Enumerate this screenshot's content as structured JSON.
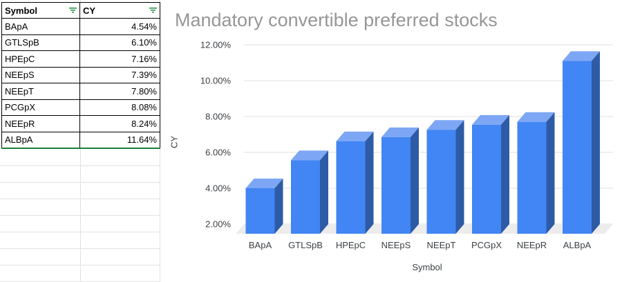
{
  "table": {
    "headers": [
      {
        "label": "Symbol"
      },
      {
        "label": "CY"
      }
    ],
    "rows": [
      [
        "BApA",
        "4.54%"
      ],
      [
        "GTLSpB",
        "6.10%"
      ],
      [
        "HPEpC",
        "7.16%"
      ],
      [
        "NEEpS",
        "7.39%"
      ],
      [
        "NEEpT",
        "7.80%"
      ],
      [
        "PCGpX",
        "8.08%"
      ],
      [
        "NEEpR",
        "8.24%"
      ],
      [
        "ALBpA",
        "11.64%"
      ]
    ],
    "empty_gridline_rows": 8
  },
  "chart_data": {
    "type": "bar",
    "variant": "3d-column",
    "title": "Mandatory convertible preferred stocks",
    "xlabel": "Symbol",
    "ylabel": "CY",
    "categories": [
      "BApA",
      "GTLSpB",
      "HPEpC",
      "NEEpS",
      "NEEpT",
      "PCGpX",
      "NEEpR",
      "ALBpA"
    ],
    "values": [
      4.54,
      6.1,
      7.16,
      7.39,
      7.8,
      8.08,
      8.24,
      11.64
    ],
    "value_format": "percent",
    "ylim": [
      2,
      12
    ],
    "yticks": [
      {
        "value": 2,
        "label": "2.00%"
      },
      {
        "value": 4,
        "label": "4.00%"
      },
      {
        "value": 6,
        "label": "6.00%"
      },
      {
        "value": 8,
        "label": "8.00%"
      },
      {
        "value": 10,
        "label": "10.00%"
      },
      {
        "value": 12,
        "label": "12.00%"
      }
    ],
    "grid": true,
    "legend": "none",
    "colors": {
      "bar_front": "#4285f4",
      "bar_top": "#7da7f4",
      "bar_side": "#2d5ba6",
      "floor": "#ececec",
      "gridline": "#e0e0e0",
      "title": "#969696",
      "axis_text": "#3c4043"
    }
  },
  "colors": {
    "table_border": "#000000",
    "filter_green": "#1e8e3e",
    "range_border_green": "#188038",
    "sheet_gridline": "#e1e1e1"
  }
}
